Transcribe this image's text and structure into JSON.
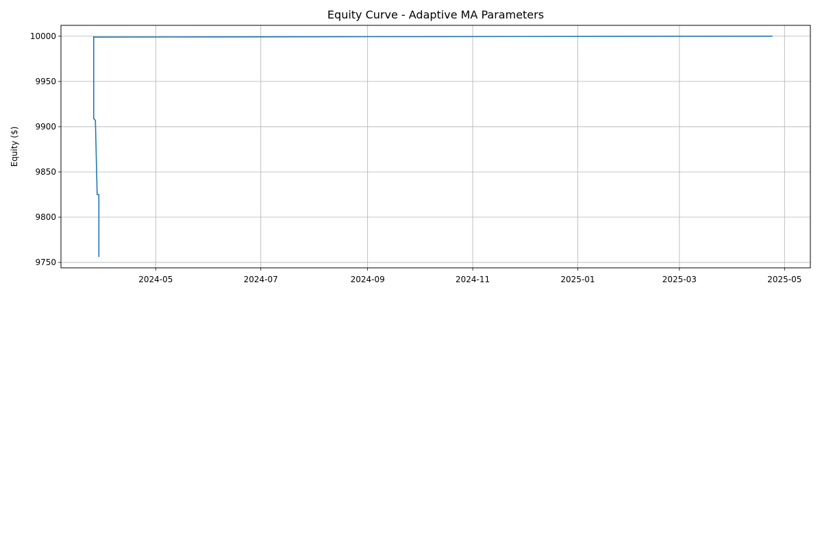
{
  "chart_data": {
    "type": "line",
    "title": "Equity Curve - Adaptive MA Parameters",
    "xlabel": "",
    "ylabel": "Equity ($)",
    "grid": true,
    "x_ticks": [
      "2024-05",
      "2024-07",
      "2024-09",
      "2024-11",
      "2025-01",
      "2025-03",
      "2025-05"
    ],
    "y_ticks": [
      9750,
      9800,
      9850,
      9900,
      9950,
      10000
    ],
    "xlim": [
      "2024-03-07",
      "2025-05-16"
    ],
    "ylim": [
      9744,
      10012
    ],
    "series": [
      {
        "name": "",
        "color": "#1f77b4",
        "x": [
          "2024-03-26",
          "2024-03-26",
          "2024-03-27",
          "2024-03-27",
          "2024-03-28",
          "2024-03-28",
          "2024-03-29",
          "2024-03-29",
          "2024-03-26",
          "2024-03-26",
          "2024-06-01",
          "2024-09-01",
          "2024-12-01",
          "2025-03-01",
          "2025-04-24"
        ],
        "y": [
          10000,
          9909,
          9907,
          9906,
          9826,
          9825,
          9825,
          9756,
          null,
          9999,
          9999.2,
          9999.5,
          9999.7,
          9999.9,
          10000
        ]
      }
    ]
  }
}
